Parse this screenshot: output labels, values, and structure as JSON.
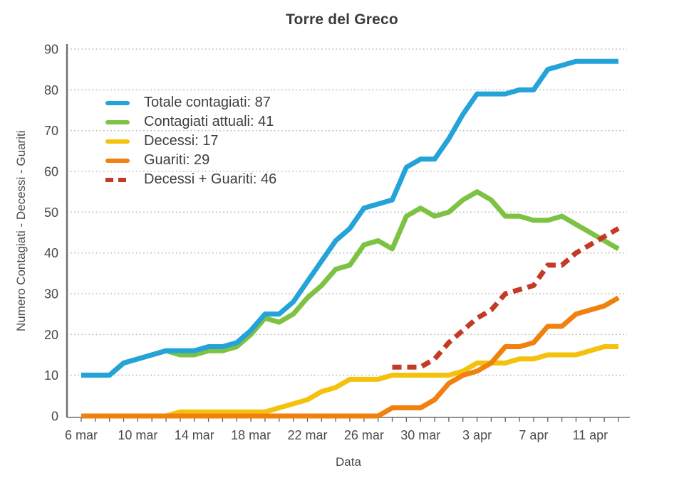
{
  "chart_data": {
    "type": "line",
    "title": "Torre del Greco",
    "xlabel": "Data",
    "ylabel": "Numero Contagiati - Decessi - Guariti",
    "ylim": [
      0,
      90
    ],
    "y_ticks": [
      0,
      10,
      20,
      30,
      40,
      50,
      60,
      70,
      80,
      90
    ],
    "x_tick_labels": [
      "6 mar",
      "10 mar",
      "14 mar",
      "18 mar",
      "22 mar",
      "26 mar",
      "30 mar",
      "3 apr",
      "7 apr",
      "11 apr"
    ],
    "x_tick_every": 4,
    "x_dates": [
      "6 mar",
      "7 mar",
      "8 mar",
      "9 mar",
      "10 mar",
      "11 mar",
      "12 mar",
      "13 mar",
      "14 mar",
      "15 mar",
      "16 mar",
      "17 mar",
      "18 mar",
      "19 mar",
      "20 mar",
      "21 mar",
      "22 mar",
      "23 mar",
      "24 mar",
      "25 mar",
      "26 mar",
      "27 mar",
      "28 mar",
      "29 mar",
      "30 mar",
      "31 mar",
      "1 apr",
      "2 apr",
      "3 apr",
      "4 apr",
      "5 apr",
      "6 apr",
      "7 apr",
      "8 apr",
      "9 apr",
      "10 apr",
      "11 apr",
      "12 apr",
      "13 apr"
    ],
    "grid": {
      "horizontal": true,
      "style": "dotted",
      "color": "#bdbdbd"
    },
    "axis_color": "#6e6e6e",
    "text_color": "#4a4a4a",
    "legend_position": "top-left-inside",
    "series": [
      {
        "name": "totale-contagiati",
        "legend_label": "Totale contagiati: 87",
        "color": "#24a3d9",
        "dashed": false,
        "final_value": 87,
        "values": [
          10,
          10,
          10,
          13,
          14,
          15,
          16,
          16,
          16,
          17,
          17,
          18,
          21,
          25,
          25,
          28,
          33,
          38,
          43,
          46,
          51,
          52,
          53,
          61,
          63,
          63,
          68,
          74,
          79,
          79,
          79,
          80,
          80,
          85,
          86,
          87,
          87,
          87,
          87
        ]
      },
      {
        "name": "contagiati-attuali",
        "legend_label": "Contagiati attuali: 41",
        "color": "#7dc243",
        "dashed": false,
        "final_value": 41,
        "values": [
          10,
          10,
          10,
          13,
          14,
          15,
          16,
          15,
          15,
          16,
          16,
          17,
          20,
          24,
          23,
          25,
          29,
          32,
          36,
          37,
          42,
          43,
          41,
          49,
          51,
          49,
          50,
          53,
          55,
          53,
          49,
          49,
          48,
          48,
          49,
          47,
          45,
          43,
          41
        ]
      },
      {
        "name": "decessi",
        "legend_label": "Decessi: 17",
        "color": "#f4c20d",
        "dashed": false,
        "final_value": 17,
        "values": [
          0,
          0,
          0,
          0,
          0,
          0,
          0,
          1,
          1,
          1,
          1,
          1,
          1,
          1,
          2,
          3,
          4,
          6,
          7,
          9,
          9,
          9,
          10,
          10,
          10,
          10,
          10,
          11,
          13,
          13,
          13,
          14,
          14,
          15,
          15,
          15,
          16,
          17,
          17
        ]
      },
      {
        "name": "guariti",
        "legend_label": "Guariti: 29",
        "color": "#f0810e",
        "dashed": false,
        "final_value": 29,
        "values": [
          0,
          0,
          0,
          0,
          0,
          0,
          0,
          0,
          0,
          0,
          0,
          0,
          0,
          0,
          0,
          0,
          0,
          0,
          0,
          0,
          0,
          0,
          2,
          2,
          2,
          4,
          8,
          10,
          11,
          13,
          17,
          17,
          18,
          22,
          22,
          25,
          26,
          27,
          29
        ]
      },
      {
        "name": "decessi-piu-guariti",
        "legend_label": "Decessi + Guariti: 46",
        "color": "#c33a26",
        "dashed": true,
        "final_value": 46,
        "values": [
          null,
          null,
          null,
          null,
          null,
          null,
          null,
          null,
          null,
          null,
          null,
          null,
          null,
          null,
          null,
          null,
          null,
          null,
          null,
          null,
          null,
          null,
          12,
          12,
          12,
          14,
          18,
          21,
          24,
          26,
          30,
          31,
          32,
          37,
          37,
          40,
          42,
          44,
          46
        ]
      }
    ]
  }
}
